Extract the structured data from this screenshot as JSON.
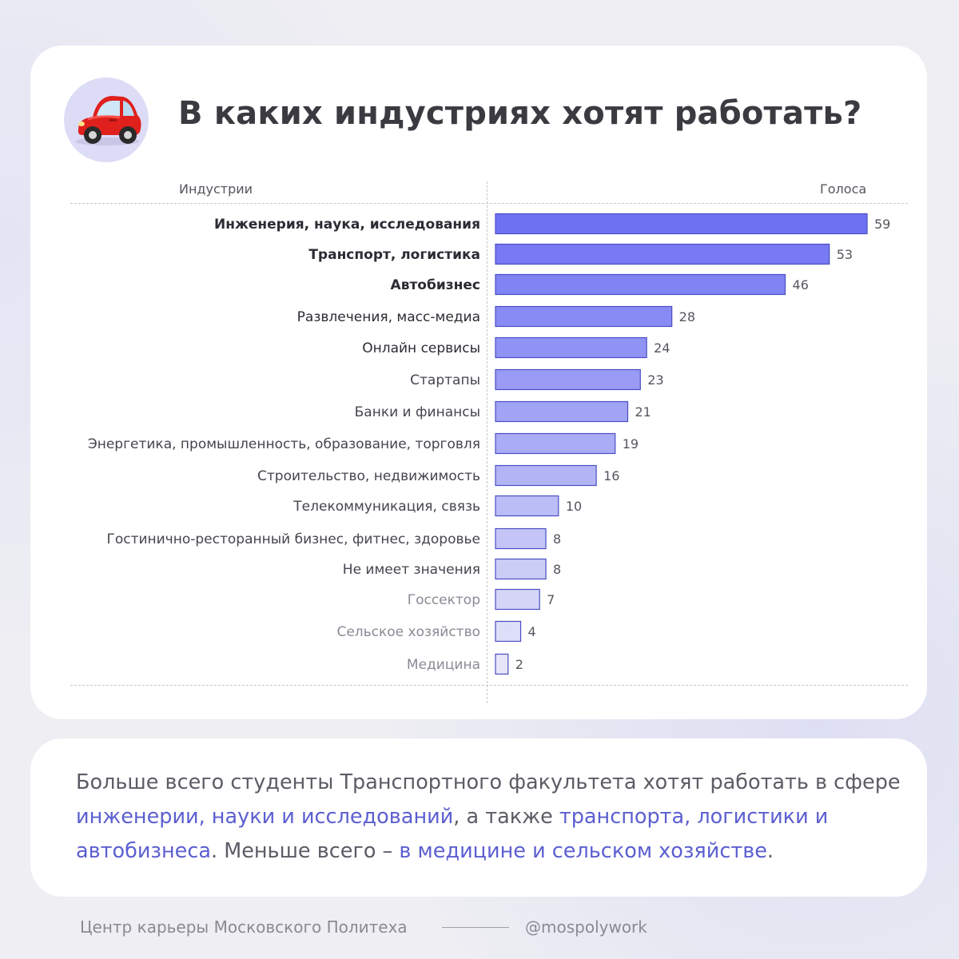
{
  "title": "В каких индустриях хотят работать?",
  "icon": "car-icon",
  "colors": {
    "accent": "#5c5fd0",
    "bar_start": "#6e72f2",
    "bar_end": "#e6e6f8",
    "stroke": "#4a4ec4"
  },
  "chart_data": {
    "type": "bar",
    "orientation": "horizontal",
    "title": "В каких индустриях хотят работать?",
    "xlabel": "Голоса",
    "ylabel": "Индустрии",
    "xlim": [
      0,
      59
    ],
    "categories": [
      "Инженерия, наука, исследования",
      "Транспорт, логистика",
      "Автобизнес",
      "Развлечения, масс-медиа",
      "Онлайн сервисы",
      "Стартапы",
      "Банки и финансы",
      "Энергетика, промышленность, образование, торговля",
      "Строительство, недвижимость",
      "Телекоммуникация, связь",
      "Гостинично-ресторанный бизнес, фитнес, здоровье",
      "Не имеет значения",
      "Госсектор",
      "Сельское хозяйство",
      "Медицина"
    ],
    "values": [
      59,
      53,
      46,
      28,
      24,
      23,
      21,
      19,
      16,
      10,
      8,
      8,
      7,
      4,
      2
    ],
    "bold_categories": [
      0,
      1,
      2,
      3,
      4
    ]
  },
  "summary": {
    "p1": "Больше всего студенты Транспортного факультета хотят работать в сфере ",
    "h1": "инженерии, науки и исследований",
    "p2": ", а также ",
    "h2": "транспорта, логистики и автобизнеса",
    "p3": ". Меньше всего – ",
    "h3": "в медицине и сельском хозяйстве",
    "p4": "."
  },
  "footer": {
    "left": "Центр карьеры Московского Политеха",
    "right": "@mospolywork"
  }
}
